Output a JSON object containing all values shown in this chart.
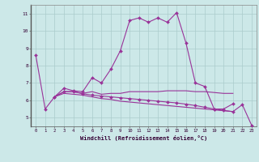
{
  "xlabel": "Windchill (Refroidissement éolien,°C)",
  "bg_color": "#cce8e8",
  "grid_color": "#aacccc",
  "line_color": "#993399",
  "x_min": -0.5,
  "x_max": 23.5,
  "y_min": 4.5,
  "y_max": 11.5,
  "yticks": [
    5,
    6,
    7,
    8,
    9,
    10,
    11
  ],
  "xticks": [
    0,
    1,
    2,
    3,
    4,
    5,
    6,
    7,
    8,
    9,
    10,
    11,
    12,
    13,
    14,
    15,
    16,
    17,
    18,
    19,
    20,
    21,
    22,
    23
  ],
  "series": [
    {
      "x": [
        0,
        1,
        2,
        3,
        4,
        5,
        6,
        7,
        8,
        9,
        10,
        11,
        12,
        13,
        14,
        15,
        16,
        17,
        18,
        19,
        20,
        21
      ],
      "y": [
        8.6,
        5.5,
        6.2,
        6.7,
        6.55,
        6.5,
        7.3,
        7.0,
        7.8,
        8.85,
        10.6,
        10.75,
        10.5,
        10.75,
        10.5,
        11.05,
        9.3,
        7.0,
        6.8,
        5.5,
        5.5,
        5.8
      ],
      "marker": true
    },
    {
      "x": [
        2,
        3,
        4,
        5,
        6,
        7,
        8,
        9,
        10,
        11,
        12,
        13,
        14,
        15,
        16,
        17,
        18,
        19,
        20,
        21,
        22,
        23
      ],
      "y": [
        6.2,
        6.5,
        6.5,
        6.4,
        6.5,
        6.35,
        6.4,
        6.4,
        6.5,
        6.5,
        6.5,
        6.5,
        6.55,
        6.55,
        6.55,
        6.5,
        6.5,
        6.45,
        6.4,
        6.4,
        null,
        null
      ],
      "marker": false
    },
    {
      "x": [
        2,
        3,
        4,
        5,
        6,
        7,
        8,
        9,
        10,
        11,
        12,
        13,
        14,
        15,
        16,
        17,
        18,
        19,
        20,
        21
      ],
      "y": [
        6.2,
        6.4,
        6.35,
        6.3,
        6.2,
        6.1,
        6.05,
        5.95,
        5.9,
        5.85,
        5.8,
        5.75,
        5.7,
        5.65,
        5.6,
        5.55,
        5.5,
        5.45,
        5.4,
        5.35
      ],
      "marker": false
    },
    {
      "x": [
        2,
        3,
        4,
        5,
        6,
        7,
        8,
        9,
        10,
        11,
        12,
        13,
        14,
        15,
        16,
        17,
        18,
        19,
        20,
        21,
        22,
        23
      ],
      "y": [
        6.2,
        6.5,
        6.5,
        6.38,
        6.3,
        6.25,
        6.2,
        6.15,
        6.1,
        6.05,
        6.0,
        5.95,
        5.9,
        5.85,
        5.78,
        5.7,
        5.6,
        5.5,
        5.42,
        5.35,
        5.75,
        4.55
      ],
      "marker": true
    }
  ]
}
